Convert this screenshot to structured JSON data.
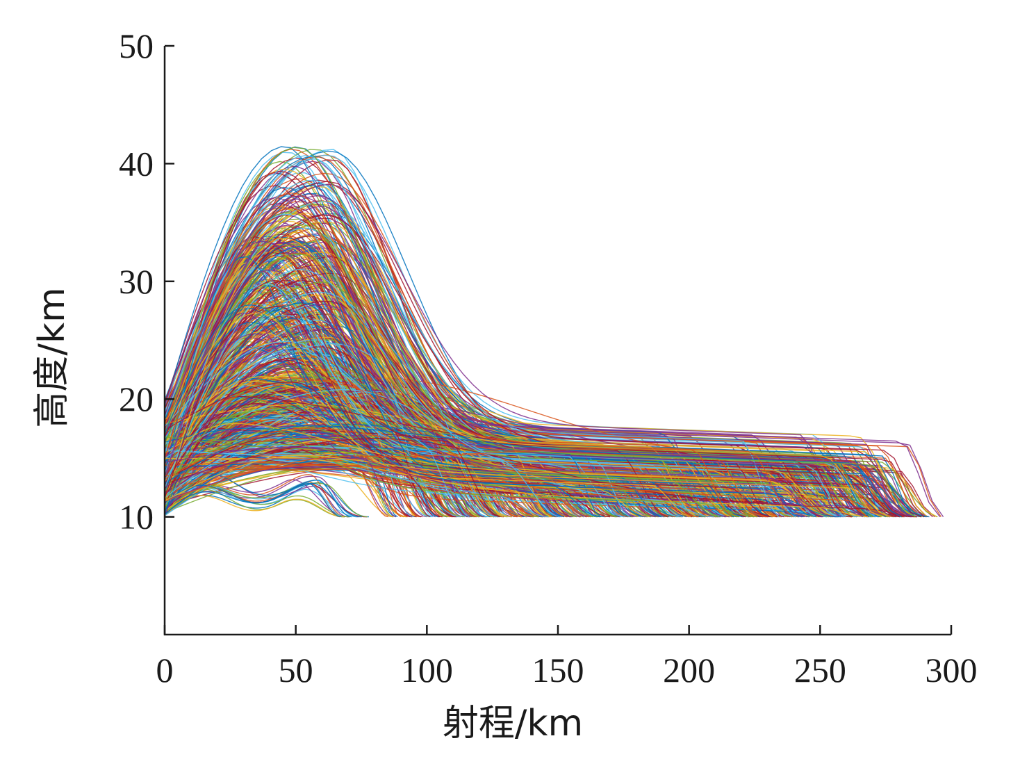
{
  "chart_data": {
    "type": "line",
    "title": "",
    "xlabel": "射程/km",
    "ylabel": "高度/km",
    "xlim": [
      0,
      300
    ],
    "ylim": [
      0,
      50
    ],
    "x_ticks": [
      0,
      50,
      100,
      150,
      200,
      250,
      300
    ],
    "y_ticks": [
      10,
      20,
      30,
      40,
      50
    ],
    "x_tick_labels": [
      "0",
      "50",
      "100",
      "150",
      "200",
      "250",
      "300"
    ],
    "y_tick_labels": [
      "10",
      "20",
      "30",
      "40",
      "50"
    ],
    "grid": false,
    "legend": "none",
    "palette": [
      "#0072bd",
      "#d95319",
      "#edb120",
      "#7e2f8e",
      "#77ac30",
      "#4dbeee",
      "#a2142f"
    ],
    "trajectory_count": 900,
    "start_x": 0,
    "end_altitude": 10,
    "range_of_endpoints": [
      70,
      297
    ],
    "apogee_range": [
      11,
      41.5
    ],
    "series": [
      {
        "kind": "lofted",
        "x": [
          0,
          10,
          20,
          30,
          40,
          50,
          60,
          70,
          80,
          90,
          100,
          110,
          120,
          130,
          150,
          175,
          200,
          225,
          250,
          275,
          297
        ],
        "y": [
          18,
          28,
          35,
          39,
          41,
          41.5,
          41,
          39,
          36,
          32,
          27.5,
          24,
          21.5,
          20.5,
          19.5,
          17.5,
          16.5,
          16.5,
          15.5,
          14.5,
          10
        ]
      },
      {
        "kind": "mid",
        "x": [
          0,
          10,
          20,
          30,
          40,
          50,
          60,
          70,
          80,
          90,
          100,
          110,
          120,
          140,
          170,
          200,
          230,
          250,
          270
        ],
        "y": [
          16,
          23,
          28.5,
          31.5,
          33,
          33.5,
          32.5,
          30,
          26.5,
          23,
          20,
          18,
          17,
          16,
          15.5,
          15,
          14.5,
          13.5,
          10
        ]
      },
      {
        "kind": "flat",
        "x": [
          0,
          10,
          20,
          40,
          60,
          80,
          100,
          130,
          160,
          190,
          220,
          250,
          280
        ],
        "y": [
          14,
          15.5,
          16.5,
          17,
          17,
          16.5,
          16,
          15.5,
          15,
          15,
          14.5,
          13.5,
          10
        ]
      },
      {
        "kind": "low",
        "x": [
          0,
          10,
          20,
          30,
          40,
          50,
          60,
          70,
          80,
          85
        ],
        "y": [
          12,
          12.5,
          13,
          13.5,
          14,
          13.8,
          13.3,
          12.5,
          11.2,
          10
        ]
      },
      {
        "kind": "wavy",
        "x": [
          0,
          5,
          10,
          18,
          25,
          32,
          40,
          50,
          60,
          67,
          71
        ],
        "y": [
          10.5,
          10,
          10.3,
          12,
          12.2,
          11.2,
          10.6,
          11.6,
          12.8,
          11.6,
          10
        ]
      }
    ]
  }
}
